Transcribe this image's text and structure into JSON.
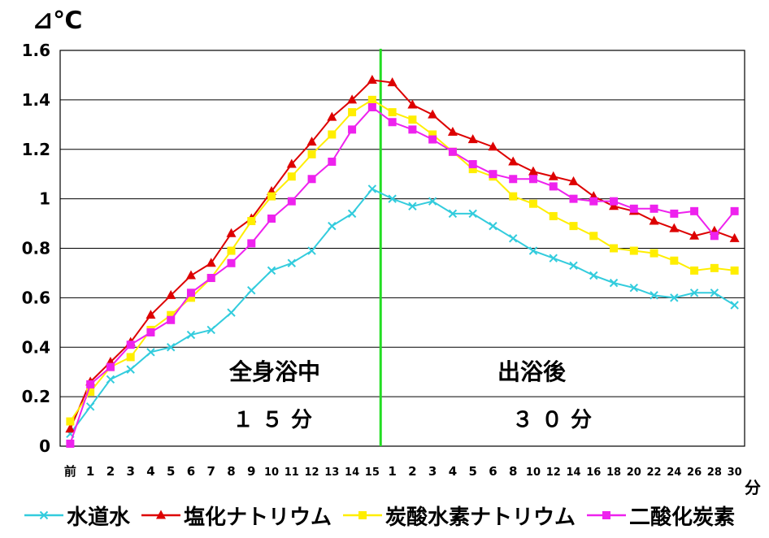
{
  "chart_data": {
    "type": "line",
    "y_unit_label": "⊿℃",
    "x_unit_label": "分",
    "ylim": [
      0,
      1.6
    ],
    "yticks": [
      "0",
      "0.2",
      "0.4",
      "0.6",
      "0.8",
      "1",
      "1.2",
      "1.4",
      "1.6"
    ],
    "grid": true,
    "legend_position": "bottom",
    "categories": [
      "前",
      "1",
      "2",
      "3",
      "4",
      "5",
      "6",
      "7",
      "8",
      "9",
      "10",
      "11",
      "12",
      "13",
      "14",
      "15",
      "1",
      "2",
      "3",
      "4",
      "5",
      "6",
      "8",
      "10",
      "12",
      "14",
      "16",
      "18",
      "20",
      "22",
      "24",
      "26",
      "28",
      "30"
    ],
    "series": [
      {
        "name": "水道水",
        "color": "#33CCDD",
        "marker": "x",
        "values": [
          0.05,
          0.16,
          0.27,
          0.31,
          0.38,
          0.4,
          0.45,
          0.47,
          0.54,
          0.63,
          0.71,
          0.74,
          0.79,
          0.89,
          0.94,
          1.04,
          1.0,
          0.97,
          0.99,
          0.94,
          0.94,
          0.89,
          0.84,
          0.79,
          0.76,
          0.73,
          0.69,
          0.66,
          0.64,
          0.61,
          0.6,
          0.62,
          0.62,
          0.57
        ]
      },
      {
        "name": "塩化ナトリウム",
        "color": "#DD0000",
        "marker": "triangle",
        "values": [
          0.07,
          0.26,
          0.34,
          0.42,
          0.53,
          0.61,
          0.69,
          0.74,
          0.86,
          0.92,
          1.03,
          1.14,
          1.23,
          1.33,
          1.4,
          1.48,
          1.47,
          1.38,
          1.34,
          1.27,
          1.24,
          1.21,
          1.15,
          1.11,
          1.09,
          1.07,
          1.01,
          0.97,
          0.95,
          0.91,
          0.88,
          0.85,
          0.87,
          0.84
        ]
      },
      {
        "name": "炭酸水素ナトリウム",
        "color": "#FFEE00",
        "marker": "square",
        "values": [
          0.1,
          0.22,
          0.32,
          0.36,
          0.47,
          0.53,
          0.6,
          0.68,
          0.79,
          0.91,
          1.01,
          1.09,
          1.18,
          1.26,
          1.35,
          1.4,
          1.35,
          1.32,
          1.26,
          1.19,
          1.12,
          1.09,
          1.01,
          0.98,
          0.93,
          0.89,
          0.85,
          0.8,
          0.79,
          0.78,
          0.75,
          0.71,
          0.72,
          0.71
        ]
      },
      {
        "name": "二酸化炭素",
        "color": "#EE22EE",
        "marker": "square",
        "values": [
          0.01,
          0.25,
          0.32,
          0.41,
          0.46,
          0.51,
          0.62,
          0.68,
          0.74,
          0.82,
          0.92,
          0.99,
          1.08,
          1.15,
          1.28,
          1.37,
          1.31,
          1.28,
          1.24,
          1.19,
          1.14,
          1.1,
          1.08,
          1.08,
          1.05,
          1.0,
          0.99,
          0.99,
          0.96,
          0.96,
          0.94,
          0.95,
          0.85,
          0.95
        ]
      }
    ],
    "divider_color": "#22DD22",
    "annotations": [
      {
        "text": "全身浴中",
        "position": "left-center"
      },
      {
        "text": "１５分",
        "position": "left-lower"
      },
      {
        "text": "出浴後",
        "position": "right-center"
      },
      {
        "text": "３０分",
        "position": "right-lower"
      }
    ]
  }
}
